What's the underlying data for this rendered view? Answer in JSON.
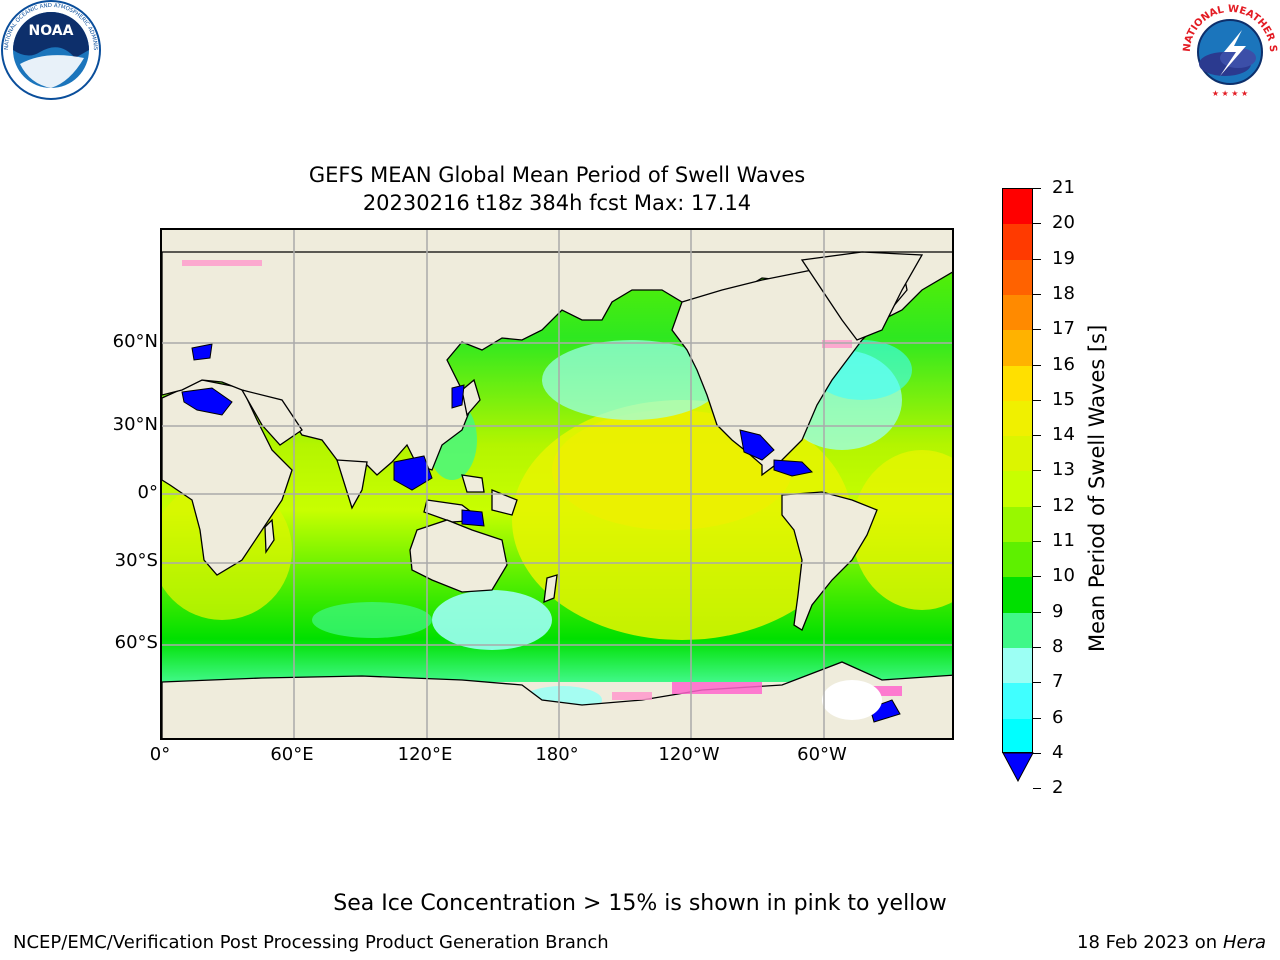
{
  "logos": {
    "noaa": {
      "text": "NOAA",
      "ring_text": "NATIONAL OCEANIC AND ATMOSPHERIC ADMINISTRATION · U.S. DEPARTMENT OF COMMERCE",
      "color": "#0a4e9b"
    },
    "nws": {
      "ring_text": "NATIONAL WEATHER SERVICE",
      "color": "#e31b23"
    }
  },
  "title": {
    "line1": "GEFS MEAN Global Mean Period of Swell Waves",
    "line2": "20230216 t18z 384h fcst   Max: 17.14"
  },
  "map": {
    "latitude_labels": [
      "60°N",
      "30°N",
      "0°",
      "30°S",
      "60°S"
    ],
    "longitude_labels": [
      "0°",
      "60°E",
      "120°E",
      "180°",
      "120°W",
      "60°W"
    ],
    "land_color": "#efecdc",
    "grid_color": "#aaaaaa"
  },
  "colorbar": {
    "title": "Mean Period of Swell Waves [s]",
    "ticks": [
      "21",
      "20",
      "19",
      "18",
      "17",
      "16",
      "15",
      "14",
      "13",
      "12",
      "11",
      "10",
      "9",
      "8",
      "7",
      "6",
      "4",
      "2"
    ],
    "colors": [
      "#ff0000",
      "#ff3a00",
      "#ff6200",
      "#ff8a00",
      "#ffb200",
      "#ffe000",
      "#f0f000",
      "#dcf500",
      "#c8ff00",
      "#98f800",
      "#5ef000",
      "#00e000",
      "#40f888",
      "#9cfff4",
      "#40ffff",
      "#00ffff",
      "#00e6ff",
      "#0080ff"
    ],
    "extend_color": "#0000ff"
  },
  "footer": {
    "note": "Sea Ice Concentration > 15% is shown in pink to yellow",
    "credit": "NCEP/EMC/Verification Post Processing Product Generation Branch",
    "date": "18 Feb 2023 on",
    "machine": "Hera"
  }
}
